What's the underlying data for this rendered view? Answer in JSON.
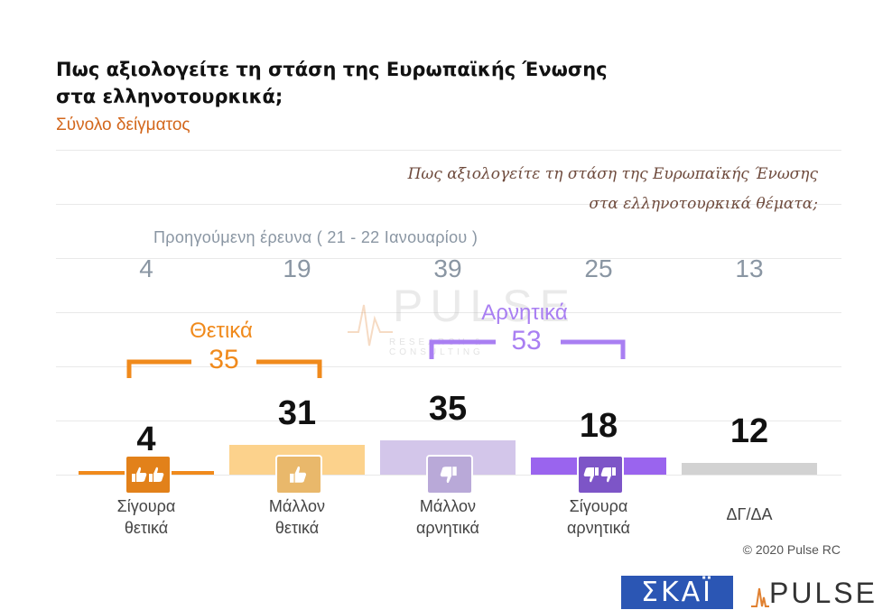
{
  "chart_data": {
    "type": "bar",
    "title": "Πως αξιολογείτε τη στάση της Ευρωπαϊκής Ένωσης στα ελληνοτουρκικά;",
    "subtitle": "Σύνολο δείγματος",
    "question": [
      "Πως αξιολογείτε τη στάση της Ευρωπαϊκής Ένωσης",
      "στα ελληνοτουρκικά θέματα;"
    ],
    "categories": [
      [
        "Σίγουρα",
        "θετικά"
      ],
      [
        "Μάλλον",
        "θετικά"
      ],
      [
        "Μάλλον",
        "αρνητικά"
      ],
      [
        "Σίγουρα",
        "αρνητικά"
      ],
      [
        "ΔΓ/ΔΑ",
        ""
      ]
    ],
    "values": [
      4,
      31,
      35,
      18,
      12
    ],
    "previous_label": "Προηγούμενη έρευνα   ( 21 - 22  Ιανουαρίου )",
    "previous_values": [
      4,
      19,
      39,
      25,
      13
    ],
    "colors": [
      "#f08a1c",
      "#fcd28c",
      "#d3c6ea",
      "#9a64ee",
      "#d2d2d2"
    ],
    "icons": [
      "double-thumbs-up-icon",
      "thumbs-up-icon",
      "thumbs-down-icon",
      "double-thumbs-down-icon",
      ""
    ],
    "icon_colors": [
      "#e2811a",
      "#e9b86b",
      "#b9a9d8",
      "#7d55c7",
      ""
    ],
    "groups": [
      {
        "label": "Θετικά",
        "value": "35",
        "color": "#f08a1c"
      },
      {
        "label": "Αρνητικά",
        "value": "53",
        "color": "#a97ff2"
      }
    ],
    "ylim": [
      0,
      40
    ]
  },
  "watermark": {
    "word": "PULSE",
    "sub": "RESEARCH & CONSULTING"
  },
  "copyright": "© 2020 Pulse RC",
  "logos": {
    "skai": "ΣΚΑΪ",
    "pulse": "PULSE"
  }
}
